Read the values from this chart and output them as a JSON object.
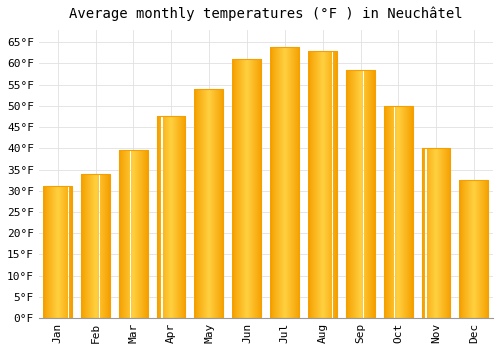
{
  "title": "Average monthly temperatures (°F ) in Neuchâtel",
  "months": [
    "Jan",
    "Feb",
    "Mar",
    "Apr",
    "May",
    "Jun",
    "Jul",
    "Aug",
    "Sep",
    "Oct",
    "Nov",
    "Dec"
  ],
  "values": [
    31,
    34,
    39.5,
    47.5,
    54,
    61,
    64,
    63,
    58.5,
    50,
    40,
    32.5
  ],
  "bar_color_center": "#FFD040",
  "bar_color_edge": "#F5A000",
  "background_color": "#FFFFFF",
  "plot_bg_color": "#FFFFFF",
  "ylim": [
    0,
    68
  ],
  "yticks": [
    0,
    5,
    10,
    15,
    20,
    25,
    30,
    35,
    40,
    45,
    50,
    55,
    60,
    65
  ],
  "grid_color": "#E0E0E0",
  "title_fontsize": 10,
  "tick_fontsize": 8,
  "font_family": "monospace",
  "bar_width": 0.75
}
